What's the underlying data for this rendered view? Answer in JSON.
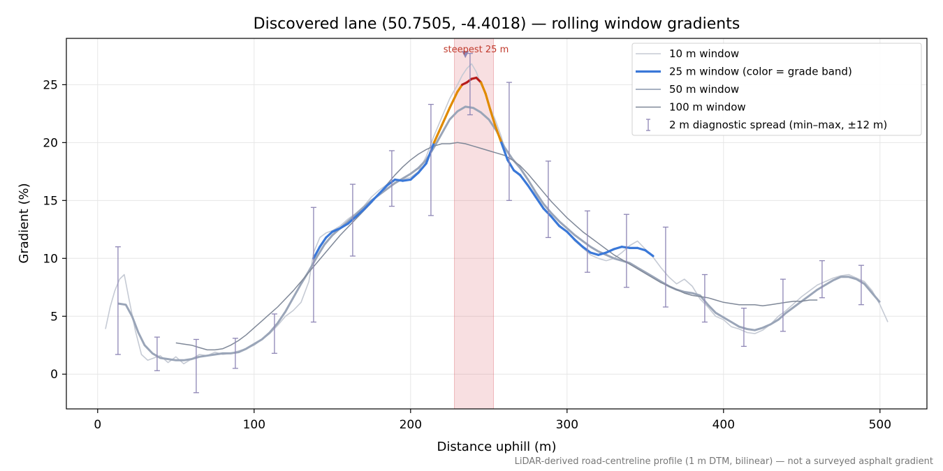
{
  "chart_data": {
    "type": "line",
    "title": "Discovered lane (50.7505, -4.4018) — rolling window gradients",
    "xlabel": "Distance uphill (m)",
    "ylabel": "Gradient (%)",
    "xlim": [
      -20,
      530
    ],
    "ylim": [
      -3,
      29
    ],
    "xticks": [
      0,
      100,
      200,
      300,
      400,
      500
    ],
    "yticks": [
      0,
      5,
      10,
      15,
      20,
      25
    ],
    "grid": true,
    "legend_position": "top-right",
    "footnote": "LiDAR-derived road-centreline profile (1 m DTM, bilinear) — not a surveyed asphalt gradient",
    "highlight": {
      "label": "steepest 25 m",
      "x_range": [
        228,
        253
      ],
      "marker_x": 235,
      "marker_y": 27.6
    },
    "series": [
      {
        "name": "10 m window",
        "color": "#c5cad4",
        "x": [
          5,
          8,
          11,
          14,
          17,
          20,
          24,
          28,
          32,
          36,
          40,
          45,
          50,
          55,
          60,
          65,
          70,
          75,
          80,
          85,
          90,
          95,
          100,
          105,
          110,
          115,
          120,
          125,
          130,
          135,
          138,
          142,
          146,
          150,
          155,
          160,
          165,
          170,
          175,
          180,
          185,
          190,
          195,
          200,
          205,
          210,
          215,
          220,
          225,
          230,
          233,
          236,
          239,
          242,
          245,
          248,
          251,
          254,
          258,
          262,
          266,
          270,
          275,
          280,
          285,
          290,
          295,
          300,
          305,
          310,
          315,
          320,
          325,
          330,
          335,
          340,
          345,
          350,
          355,
          360,
          365,
          370,
          375,
          380,
          385,
          390,
          395,
          400,
          405,
          410,
          415,
          420,
          425,
          430,
          435,
          440,
          445,
          450,
          455,
          460,
          465,
          470,
          475,
          480,
          485,
          490,
          495,
          500,
          505
        ],
        "y": [
          3.9,
          5.8,
          7.2,
          8.2,
          8.6,
          6.5,
          3.8,
          1.7,
          1.2,
          1.4,
          1.6,
          1.0,
          1.5,
          0.9,
          1.3,
          1.7,
          1.6,
          1.9,
          1.7,
          1.8,
          2.0,
          2.2,
          2.5,
          3.0,
          3.5,
          4.2,
          5.0,
          5.5,
          6.2,
          8.0,
          10.5,
          11.8,
          12.2,
          12.4,
          12.8,
          13.4,
          13.9,
          14.5,
          15.3,
          15.9,
          16.4,
          16.8,
          16.8,
          17.0,
          17.5,
          18.8,
          20.6,
          22.2,
          23.8,
          25.0,
          25.8,
          26.4,
          26.8,
          26.1,
          25.0,
          24.2,
          23.0,
          22.0,
          20.5,
          18.5,
          17.6,
          17.1,
          16.3,
          15.5,
          14.4,
          13.6,
          12.9,
          12.3,
          11.5,
          10.9,
          10.3,
          10.0,
          9.8,
          10.0,
          10.5,
          11.1,
          11.5,
          10.8,
          10.1,
          9.2,
          8.4,
          7.8,
          8.2,
          7.6,
          6.5,
          5.8,
          5.0,
          4.7,
          4.1,
          3.9,
          3.6,
          3.5,
          3.8,
          4.3,
          5.0,
          5.5,
          6.1,
          6.7,
          7.2,
          7.7,
          8.0,
          8.3,
          8.5,
          8.6,
          8.3,
          8.0,
          7.2,
          6.0,
          4.5
        ]
      },
      {
        "name": "25 m window (color = grade band)",
        "color": "#3a78d8",
        "band_colors": {
          "under_20": "#3a78d8",
          "20_to_25": "#e08a00",
          "over_25": "#b71c1c"
        },
        "x": [
          138,
          142,
          146,
          150,
          155,
          160,
          165,
          170,
          175,
          180,
          185,
          190,
          195,
          200,
          205,
          210,
          215,
          220,
          225,
          230,
          233,
          236,
          239,
          242,
          245,
          248,
          251,
          254,
          258,
          262,
          266,
          270,
          275,
          280,
          285,
          290,
          295,
          300,
          305,
          310,
          315,
          320,
          325,
          330,
          335,
          340,
          345,
          350,
          355
        ],
        "y": [
          10.0,
          11.0,
          11.8,
          12.3,
          12.6,
          13.0,
          13.6,
          14.2,
          14.9,
          15.6,
          16.3,
          16.8,
          16.7,
          16.8,
          17.4,
          18.2,
          20.0,
          21.5,
          23.0,
          24.4,
          25.0,
          25.2,
          25.5,
          25.6,
          25.2,
          24.2,
          22.8,
          21.5,
          20.0,
          18.5,
          17.6,
          17.2,
          16.3,
          15.3,
          14.3,
          13.6,
          12.8,
          12.3,
          11.6,
          11.0,
          10.5,
          10.3,
          10.5,
          10.8,
          11.0,
          10.9,
          10.9,
          10.7,
          10.2
        ]
      },
      {
        "name": "50 m window",
        "color": "#9aa5b8",
        "x": [
          13,
          18,
          22,
          26,
          30,
          35,
          40,
          45,
          50,
          55,
          60,
          65,
          70,
          75,
          80,
          85,
          90,
          95,
          100,
          105,
          110,
          115,
          120,
          125,
          130,
          135,
          140,
          145,
          150,
          155,
          160,
          165,
          170,
          175,
          180,
          185,
          190,
          195,
          200,
          205,
          210,
          215,
          220,
          225,
          230,
          235,
          240,
          245,
          250,
          255,
          260,
          265,
          270,
          275,
          280,
          285,
          290,
          295,
          300,
          305,
          310,
          315,
          320,
          325,
          330,
          335,
          340,
          345,
          350,
          355,
          360,
          365,
          370,
          375,
          380,
          385,
          390,
          395,
          400,
          405,
          410,
          415,
          420,
          425,
          430,
          435,
          440,
          445,
          450,
          455,
          460,
          465,
          470,
          475,
          480,
          485,
          490,
          495,
          500
        ],
        "y": [
          6.1,
          6.0,
          5.0,
          3.6,
          2.5,
          1.8,
          1.4,
          1.3,
          1.2,
          1.2,
          1.3,
          1.5,
          1.6,
          1.7,
          1.8,
          1.8,
          1.9,
          2.2,
          2.6,
          3.0,
          3.6,
          4.4,
          5.4,
          6.6,
          7.8,
          8.9,
          10.1,
          11.2,
          12.0,
          12.6,
          13.2,
          13.8,
          14.4,
          15.0,
          15.5,
          16.0,
          16.5,
          16.9,
          17.3,
          17.8,
          18.5,
          19.6,
          20.8,
          22.0,
          22.7,
          23.1,
          23.0,
          22.6,
          22.0,
          21.0,
          19.6,
          18.6,
          17.8,
          16.8,
          15.7,
          14.7,
          13.9,
          13.2,
          12.6,
          12.0,
          11.5,
          11.0,
          10.6,
          10.3,
          10.0,
          9.8,
          9.6,
          9.2,
          8.8,
          8.4,
          8.0,
          7.6,
          7.3,
          7.1,
          7.0,
          6.8,
          6.0,
          5.3,
          4.9,
          4.5,
          4.1,
          3.9,
          3.8,
          4.0,
          4.3,
          4.7,
          5.3,
          5.8,
          6.3,
          6.8,
          7.3,
          7.7,
          8.1,
          8.4,
          8.4,
          8.2,
          7.8,
          7.0,
          6.2
        ]
      },
      {
        "name": "100 m window",
        "color": "#7f8898",
        "x": [
          50,
          55,
          60,
          65,
          70,
          75,
          80,
          85,
          90,
          95,
          100,
          105,
          110,
          115,
          120,
          125,
          130,
          135,
          140,
          145,
          150,
          155,
          160,
          165,
          170,
          175,
          180,
          185,
          190,
          195,
          200,
          205,
          210,
          215,
          220,
          225,
          230,
          235,
          240,
          245,
          250,
          255,
          260,
          265,
          270,
          275,
          280,
          285,
          290,
          295,
          300,
          305,
          310,
          315,
          320,
          325,
          330,
          335,
          340,
          345,
          350,
          355,
          360,
          365,
          370,
          375,
          380,
          385,
          390,
          395,
          400,
          405,
          410,
          415,
          420,
          425,
          430,
          435,
          440,
          445,
          450,
          455,
          460
        ],
        "y": [
          2.7,
          2.6,
          2.5,
          2.3,
          2.1,
          2.1,
          2.2,
          2.5,
          2.9,
          3.4,
          4.0,
          4.6,
          5.2,
          5.8,
          6.5,
          7.2,
          8.0,
          8.8,
          9.6,
          10.4,
          11.2,
          12.0,
          12.7,
          13.4,
          14.1,
          14.8,
          15.6,
          16.4,
          17.2,
          17.9,
          18.5,
          19.0,
          19.4,
          19.7,
          19.9,
          19.9,
          20.0,
          19.9,
          19.7,
          19.5,
          19.3,
          19.1,
          18.9,
          18.5,
          18.0,
          17.3,
          16.5,
          15.7,
          14.9,
          14.2,
          13.5,
          12.9,
          12.3,
          11.8,
          11.3,
          10.8,
          10.3,
          9.9,
          9.5,
          9.1,
          8.7,
          8.3,
          7.9,
          7.6,
          7.3,
          7.0,
          6.8,
          6.7,
          6.6,
          6.4,
          6.2,
          6.1,
          6.0,
          6.0,
          6.0,
          5.9,
          6.0,
          6.1,
          6.2,
          6.3,
          6.3,
          6.4,
          6.4
        ]
      },
      {
        "name": "2 m diagnostic spread (min–max, ±12 m)",
        "type": "errorbar",
        "color": "#8e86b5",
        "points": [
          {
            "x": 13,
            "min": 1.7,
            "max": 11.0
          },
          {
            "x": 38,
            "min": 0.3,
            "max": 3.2
          },
          {
            "x": 63,
            "min": -1.6,
            "max": 3.0
          },
          {
            "x": 88,
            "min": 0.5,
            "max": 3.1
          },
          {
            "x": 113,
            "min": 1.8,
            "max": 5.2
          },
          {
            "x": 138,
            "min": 4.5,
            "max": 14.4
          },
          {
            "x": 163,
            "min": 10.2,
            "max": 16.4
          },
          {
            "x": 188,
            "min": 14.5,
            "max": 19.3
          },
          {
            "x": 213,
            "min": 13.7,
            "max": 23.3
          },
          {
            "x": 238,
            "min": 22.4,
            "max": 27.7
          },
          {
            "x": 263,
            "min": 15.0,
            "max": 25.2
          },
          {
            "x": 288,
            "min": 11.8,
            "max": 18.4
          },
          {
            "x": 313,
            "min": 8.8,
            "max": 14.1
          },
          {
            "x": 338,
            "min": 7.5,
            "max": 13.8
          },
          {
            "x": 363,
            "min": 5.8,
            "max": 12.7
          },
          {
            "x": 388,
            "min": 4.5,
            "max": 8.6
          },
          {
            "x": 413,
            "min": 2.4,
            "max": 5.7
          },
          {
            "x": 438,
            "min": 3.7,
            "max": 8.2
          },
          {
            "x": 463,
            "min": 6.6,
            "max": 9.8
          },
          {
            "x": 488,
            "min": 6.0,
            "max": 9.4
          }
        ]
      }
    ]
  }
}
